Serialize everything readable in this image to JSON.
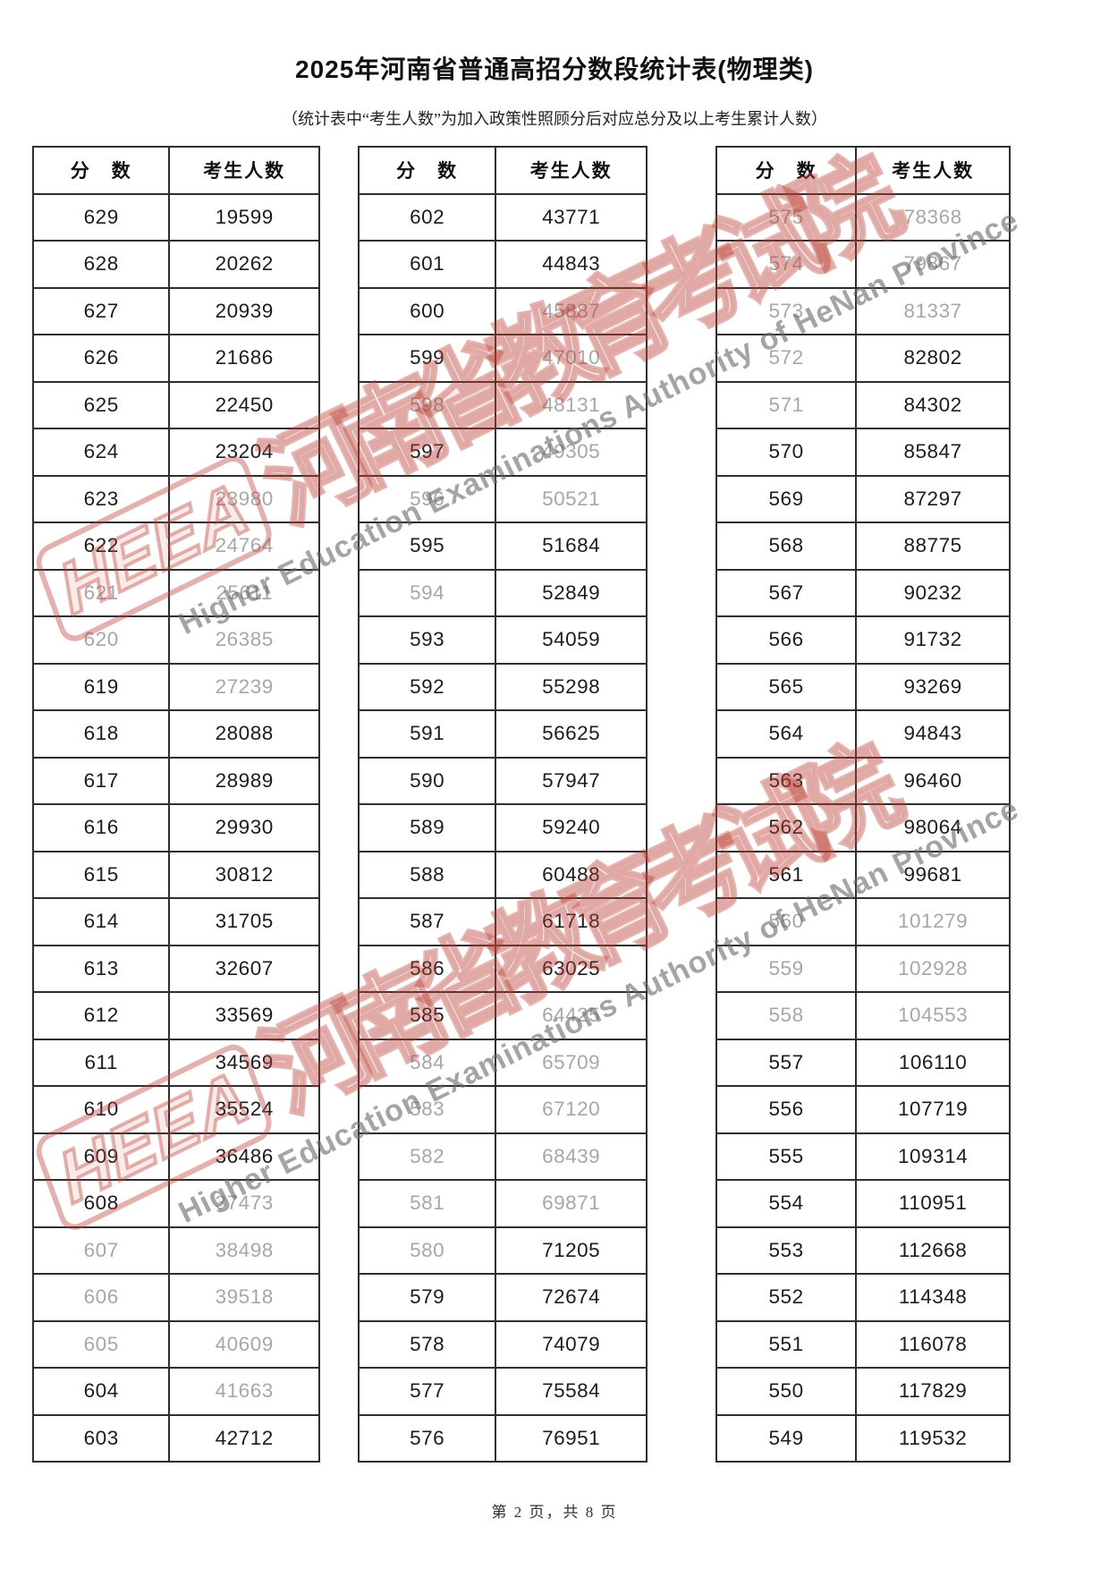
{
  "page": {
    "title": "2025年河南省普通高招分数段统计表(物理类)",
    "subtitle": "（统计表中“考生人数”为加入政策性照顾分后对应总分及以上考生累计人数）",
    "footer": "第 2 页，共 8 页"
  },
  "table_headers": {
    "score": "分　数",
    "count": "考生人数"
  },
  "watermark": {
    "logo_text": "HEEA",
    "cn_text": "河南省教育考试院",
    "en_text": "Higher Education Examinations Authority of HeNan Province",
    "red_color": "#bb3e35",
    "gray_color": "#686868"
  },
  "tables": [
    {
      "rows": [
        [
          "629",
          "19599",
          ""
        ],
        [
          "628",
          "20262",
          ""
        ],
        [
          "627",
          "20939",
          ""
        ],
        [
          "626",
          "21686",
          ""
        ],
        [
          "625",
          "22450",
          ""
        ],
        [
          "624",
          "23204",
          ""
        ],
        [
          "623",
          "23980",
          "c"
        ],
        [
          "622",
          "24764",
          "c"
        ],
        [
          "621",
          "25611",
          "sc"
        ],
        [
          "620",
          "26385",
          "sc"
        ],
        [
          "619",
          "27239",
          "c"
        ],
        [
          "618",
          "28088",
          ""
        ],
        [
          "617",
          "28989",
          ""
        ],
        [
          "616",
          "29930",
          ""
        ],
        [
          "615",
          "30812",
          ""
        ],
        [
          "614",
          "31705",
          ""
        ],
        [
          "613",
          "32607",
          ""
        ],
        [
          "612",
          "33569",
          ""
        ],
        [
          "611",
          "34569",
          ""
        ],
        [
          "610",
          "35524",
          ""
        ],
        [
          "609",
          "36486",
          ""
        ],
        [
          "608",
          "37473",
          "c"
        ],
        [
          "607",
          "38498",
          "sc"
        ],
        [
          "606",
          "39518",
          "sc"
        ],
        [
          "605",
          "40609",
          "sc"
        ],
        [
          "604",
          "41663",
          "c"
        ],
        [
          "603",
          "42712",
          ""
        ]
      ]
    },
    {
      "rows": [
        [
          "602",
          "43771",
          ""
        ],
        [
          "601",
          "44843",
          ""
        ],
        [
          "600",
          "45887",
          "c"
        ],
        [
          "599",
          "47010",
          "c"
        ],
        [
          "598",
          "48131",
          "sc"
        ],
        [
          "597",
          "49305",
          "c"
        ],
        [
          "596",
          "50521",
          "sc"
        ],
        [
          "595",
          "51684",
          ""
        ],
        [
          "594",
          "52849",
          "s"
        ],
        [
          "593",
          "54059",
          ""
        ],
        [
          "592",
          "55298",
          ""
        ],
        [
          "591",
          "56625",
          ""
        ],
        [
          "590",
          "57947",
          ""
        ],
        [
          "589",
          "59240",
          ""
        ],
        [
          "588",
          "60488",
          ""
        ],
        [
          "587",
          "61718",
          ""
        ],
        [
          "586",
          "63025",
          ""
        ],
        [
          "585",
          "64425",
          "c"
        ],
        [
          "584",
          "65709",
          "sc"
        ],
        [
          "583",
          "67120",
          "sc"
        ],
        [
          "582",
          "68439",
          "sc"
        ],
        [
          "581",
          "69871",
          "sc"
        ],
        [
          "580",
          "71205",
          "s"
        ],
        [
          "579",
          "72674",
          ""
        ],
        [
          "578",
          "74079",
          ""
        ],
        [
          "577",
          "75584",
          ""
        ],
        [
          "576",
          "76951",
          ""
        ]
      ]
    },
    {
      "rows": [
        [
          "575",
          "78368",
          "sc"
        ],
        [
          "574",
          "79867",
          "sc"
        ],
        [
          "573",
          "81337",
          "sc"
        ],
        [
          "572",
          "82802",
          "s"
        ],
        [
          "571",
          "84302",
          "s"
        ],
        [
          "570",
          "85847",
          ""
        ],
        [
          "569",
          "87297",
          ""
        ],
        [
          "568",
          "88775",
          ""
        ],
        [
          "567",
          "90232",
          ""
        ],
        [
          "566",
          "91732",
          ""
        ],
        [
          "565",
          "93269",
          ""
        ],
        [
          "564",
          "94843",
          ""
        ],
        [
          "563",
          "96460",
          ""
        ],
        [
          "562",
          "98064",
          ""
        ],
        [
          "561",
          "99681",
          ""
        ],
        [
          "560",
          "101279",
          "sc"
        ],
        [
          "559",
          "102928",
          "sc"
        ],
        [
          "558",
          "104553",
          "sc"
        ],
        [
          "557",
          "106110",
          ""
        ],
        [
          "556",
          "107719",
          ""
        ],
        [
          "555",
          "109314",
          ""
        ],
        [
          "554",
          "110951",
          ""
        ],
        [
          "553",
          "112668",
          ""
        ],
        [
          "552",
          "114348",
          ""
        ],
        [
          "551",
          "116078",
          ""
        ],
        [
          "550",
          "117829",
          ""
        ],
        [
          "549",
          "119532",
          ""
        ]
      ]
    }
  ]
}
